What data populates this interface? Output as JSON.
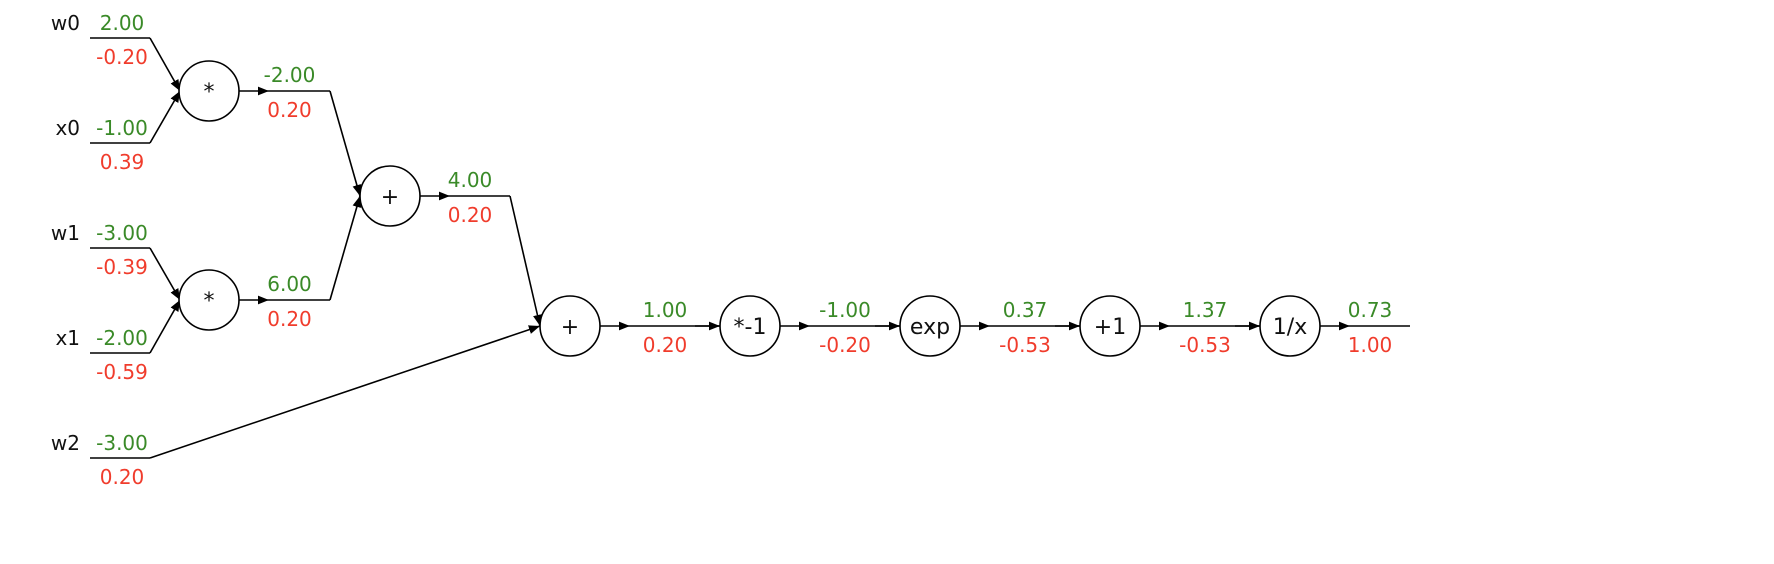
{
  "colors": {
    "forward": "#3a8a28",
    "backward": "#f03c2c",
    "stroke": "#000000"
  },
  "inputs": [
    {
      "name": "w0",
      "value": "2.00",
      "grad": "-0.20"
    },
    {
      "name": "x0",
      "value": "-1.00",
      "grad": "0.39"
    },
    {
      "name": "w1",
      "value": "-3.00",
      "grad": "-0.39"
    },
    {
      "name": "x1",
      "value": "-2.00",
      "grad": "-0.59"
    },
    {
      "name": "w2",
      "value": "-3.00",
      "grad": "0.20"
    }
  ],
  "nodes": [
    {
      "id": "mul0",
      "op": "*",
      "value": "-2.00",
      "grad": "0.20"
    },
    {
      "id": "mul1",
      "op": "*",
      "value": "6.00",
      "grad": "0.20"
    },
    {
      "id": "add0",
      "op": "+",
      "value": "4.00",
      "grad": "0.20"
    },
    {
      "id": "add1",
      "op": "+",
      "value": "1.00",
      "grad": "0.20"
    },
    {
      "id": "neg",
      "op": "*-1",
      "value": "-1.00",
      "grad": "-0.20"
    },
    {
      "id": "exp",
      "op": "exp",
      "value": "0.37",
      "grad": "-0.53"
    },
    {
      "id": "plus1",
      "op": "+1",
      "value": "1.37",
      "grad": "-0.53"
    },
    {
      "id": "recip",
      "op": "1/x",
      "value": "0.73",
      "grad": "1.00"
    }
  ]
}
